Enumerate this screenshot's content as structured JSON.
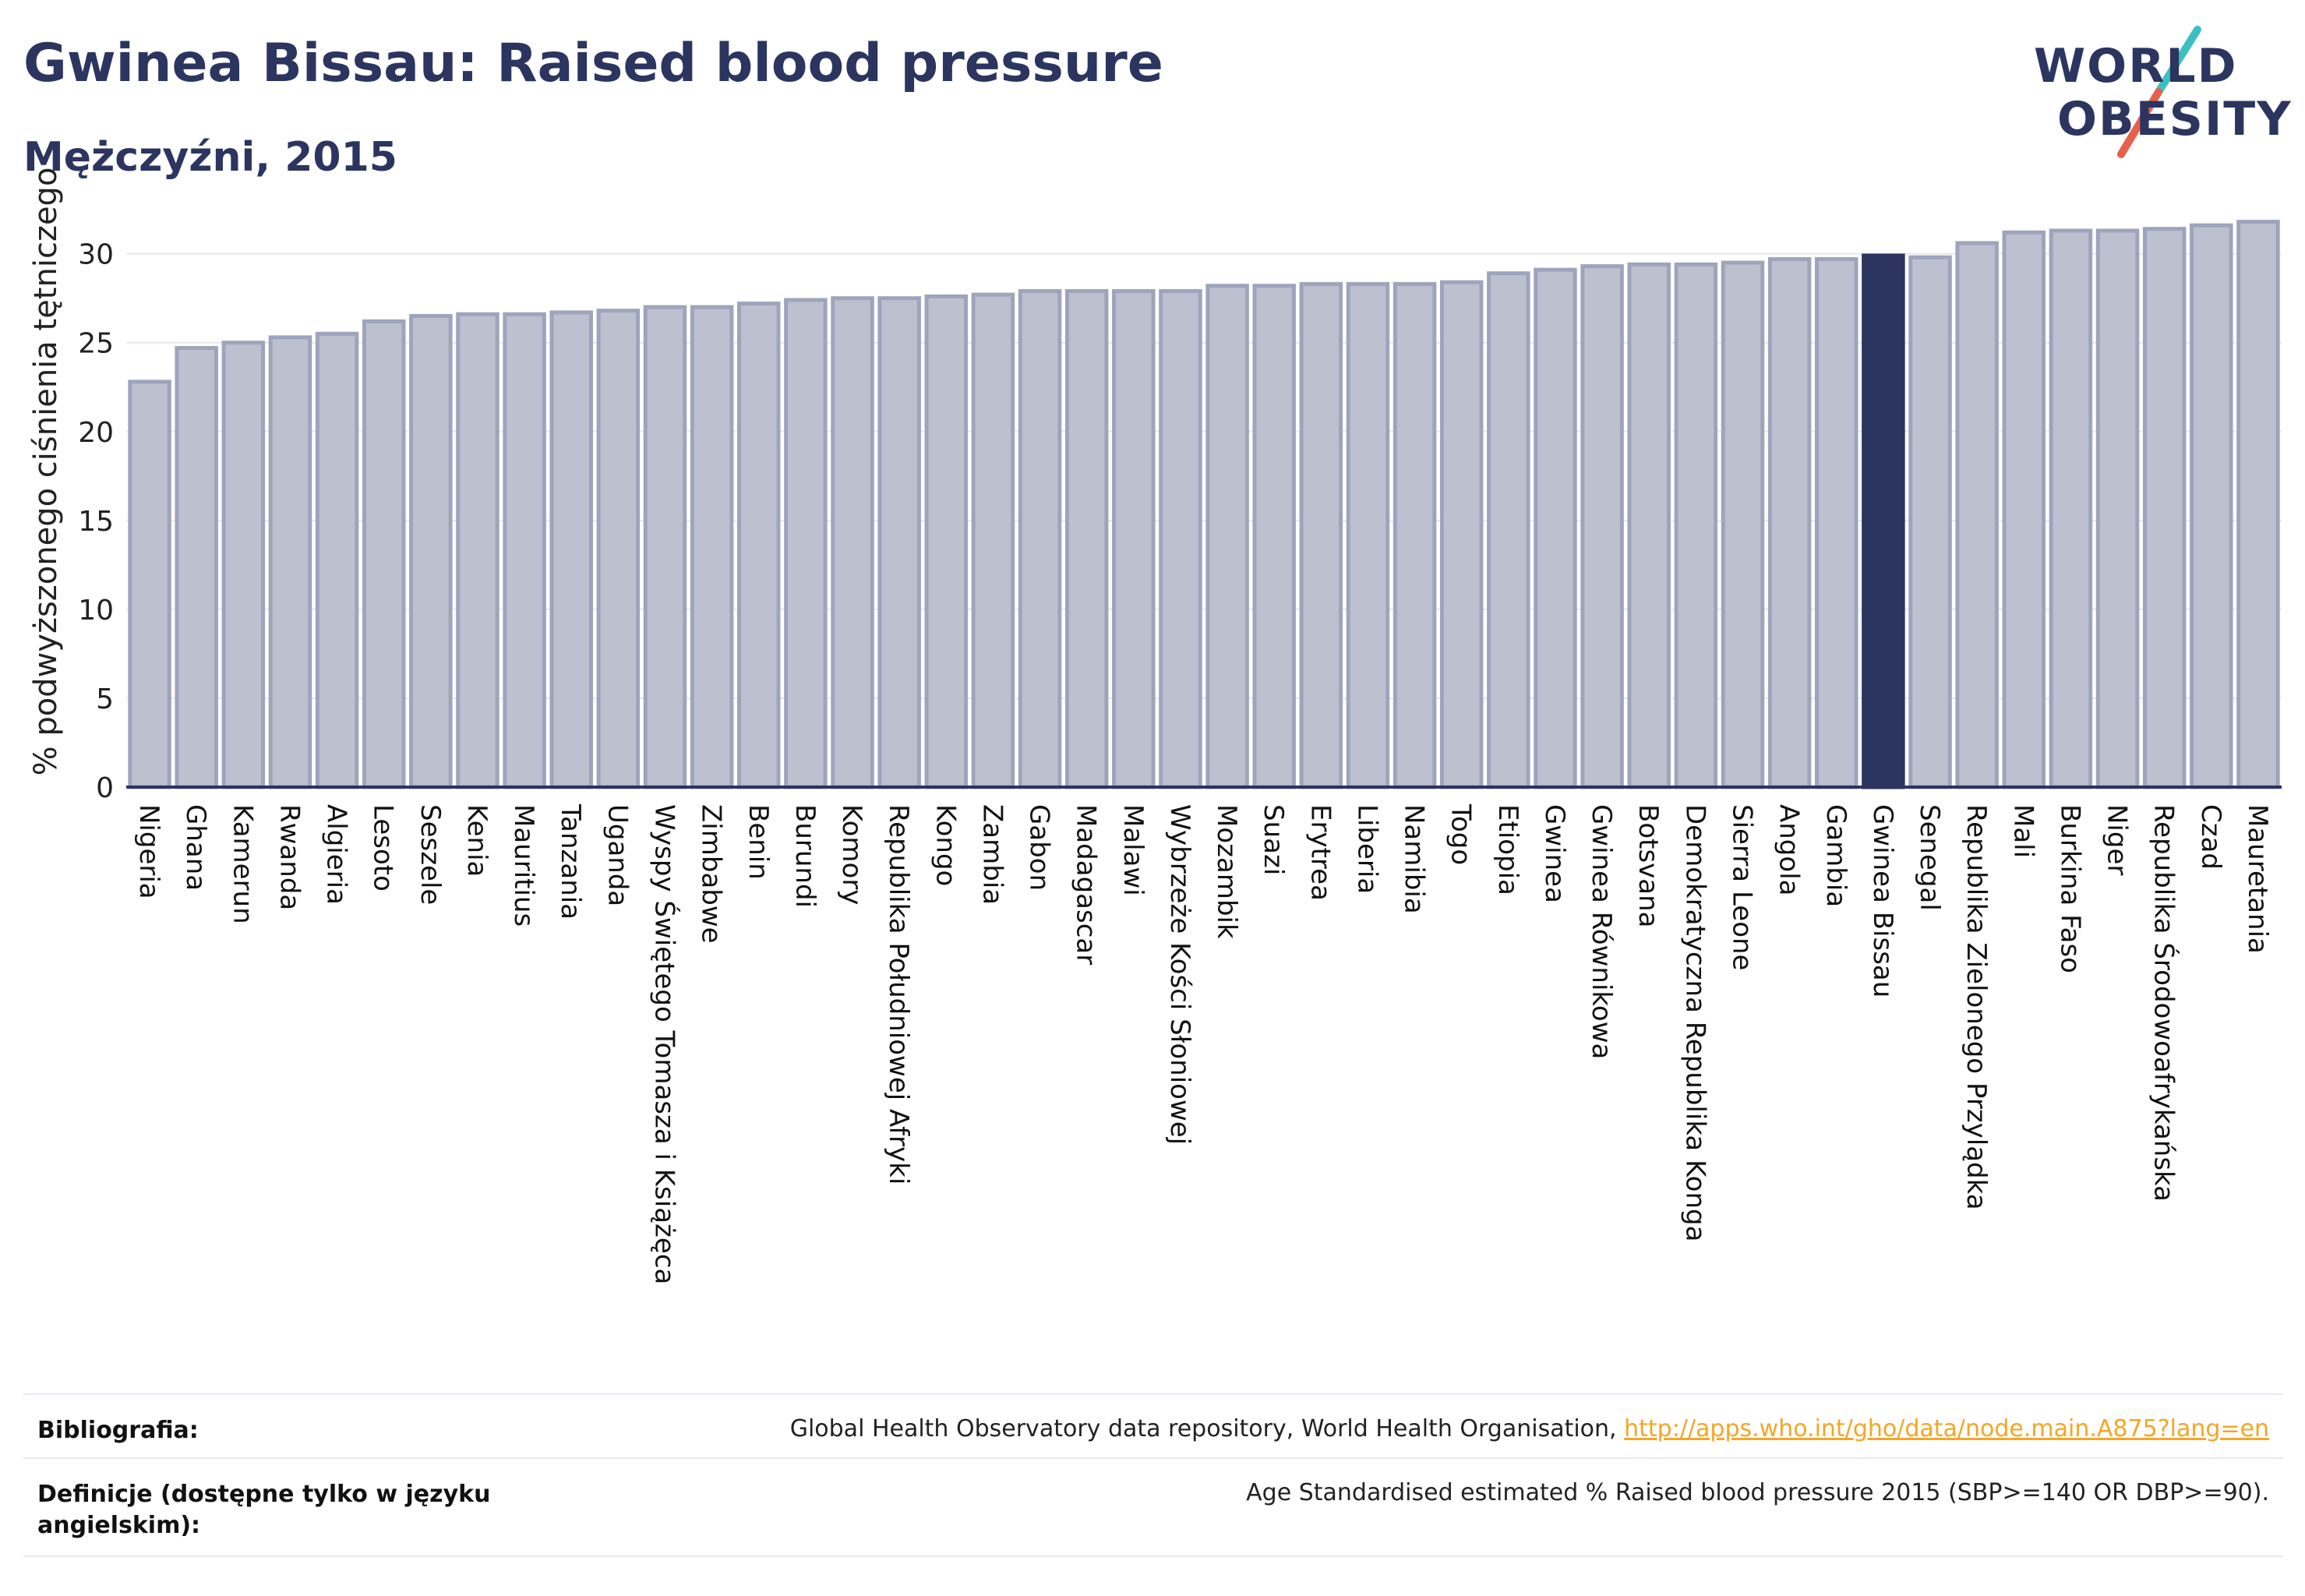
{
  "header": {
    "title": "Gwinea Bissau: Raised blood pressure",
    "subtitle": "Mężczyźni, 2015"
  },
  "logo": {
    "line1": "WORLD",
    "line2": "OBESITY",
    "slash_colors": [
      "#3bbfbf",
      "#e8604c"
    ]
  },
  "colors": {
    "bar": "#bcc0cf",
    "bar_stroke": "#9ea4bb",
    "highlight": "#2b3560",
    "axis": "#2b3560",
    "grid": "#e6e8ef",
    "link": "#f5a623"
  },
  "chart_data": {
    "type": "bar",
    "ylabel": "% podwyższonego ciśnienia tętniczego",
    "ylim": [
      0,
      32
    ],
    "yticks": [
      0,
      5,
      10,
      15,
      20,
      25,
      30
    ],
    "grid": true,
    "highlight": "Gwinea Bissau",
    "categories": [
      "Nigeria",
      "Ghana",
      "Kamerun",
      "Rwanda",
      "Algieria",
      "Lesoto",
      "Seszele",
      "Kenia",
      "Mauritius",
      "Tanzania",
      "Uganda",
      "Wyspy Świętego Tomasza i Książęca",
      "Zimbabwe",
      "Benin",
      "Burundi",
      "Komory",
      "Republika Południowej Afryki",
      "Kongo",
      "Zambia",
      "Gabon",
      "Madagascar",
      "Malawi",
      "Wybrzeże Kości Słoniowej",
      "Mozambik",
      "Suazi",
      "Erytrea",
      "Liberia",
      "Namibia",
      "Togo",
      "Etiopia",
      "Gwinea",
      "Gwinea Równikowa",
      "Botsvana",
      "Demokratyczna Republika Konga",
      "Sierra Leone",
      "Angola",
      "Gambia",
      "Gwinea Bissau",
      "Senegal",
      "Republika Zielonego Przylądka",
      "Mali",
      "Burkina Faso",
      "Niger",
      "Republika Środowoafrykańska",
      "Czad",
      "Mauretania"
    ],
    "values": [
      22.8,
      24.7,
      25.0,
      25.3,
      25.5,
      26.2,
      26.5,
      26.6,
      26.6,
      26.7,
      26.8,
      27.0,
      27.0,
      27.2,
      27.4,
      27.5,
      27.5,
      27.6,
      27.7,
      27.9,
      27.9,
      27.9,
      27.9,
      28.2,
      28.2,
      28.3,
      28.3,
      28.3,
      28.4,
      28.9,
      29.1,
      29.3,
      29.4,
      29.4,
      29.5,
      29.7,
      29.7,
      29.9,
      29.8,
      30.6,
      31.2,
      31.3,
      31.3,
      31.4,
      31.6,
      31.8
    ]
  },
  "footer": {
    "bibliography_label": "Bibliografia:",
    "bibliography_text": "Global Health Observatory data repository, World Health Organisation,",
    "bibliography_link": "http://apps.who.int/gho/data/node.main.A875?lang=en",
    "definitions_label": "Definicje (dostępne tylko w języku angielskim):",
    "definitions_text": "Age Standardised estimated % Raised blood pressure 2015 (SBP>=140 OR DBP>=90)."
  }
}
